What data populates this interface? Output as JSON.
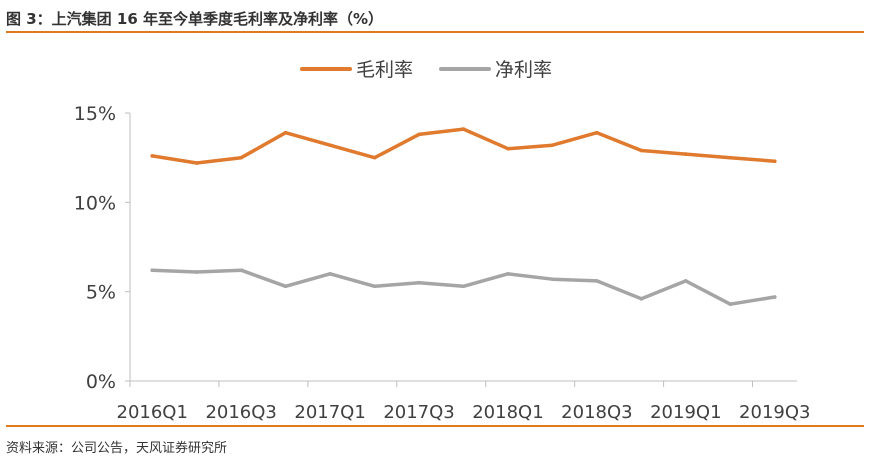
{
  "figure": {
    "title": "图 3：上汽集团 16 年至今单季度毛利率及净利率（%）",
    "source": "资料来源：公司公告，天风证券研究所"
  },
  "chart_data": {
    "type": "line",
    "categories": [
      "2016Q1",
      "2016Q2",
      "2016Q3",
      "2016Q4",
      "2017Q1",
      "2017Q2",
      "2017Q3",
      "2017Q4",
      "2018Q1",
      "2018Q2",
      "2018Q3",
      "2018Q4",
      "2019Q1",
      "2019Q2",
      "2019Q3"
    ],
    "x_tick_labels": [
      "2016Q1",
      "2016Q3",
      "2017Q1",
      "2017Q3",
      "2018Q1",
      "2018Q3",
      "2019Q1",
      "2019Q3"
    ],
    "series": [
      {
        "name": "毛利率",
        "color": "#e07a2e",
        "values": [
          12.6,
          12.2,
          12.5,
          13.9,
          13.2,
          12.5,
          13.8,
          14.1,
          13.0,
          13.2,
          13.9,
          12.9,
          12.7,
          12.5,
          12.3
        ]
      },
      {
        "name": "净利率",
        "color": "#a5a5a5",
        "values": [
          6.2,
          6.1,
          6.2,
          5.3,
          6.0,
          5.3,
          5.5,
          5.3,
          6.0,
          5.7,
          5.6,
          4.6,
          5.6,
          4.3,
          4.7
        ]
      }
    ],
    "ylim": [
      0,
      15
    ],
    "y_ticks": [
      0,
      5,
      10,
      15
    ],
    "y_tick_labels": [
      "0%",
      "5%",
      "10%",
      "15%"
    ],
    "legend_position": "top-center",
    "grid": false
  }
}
